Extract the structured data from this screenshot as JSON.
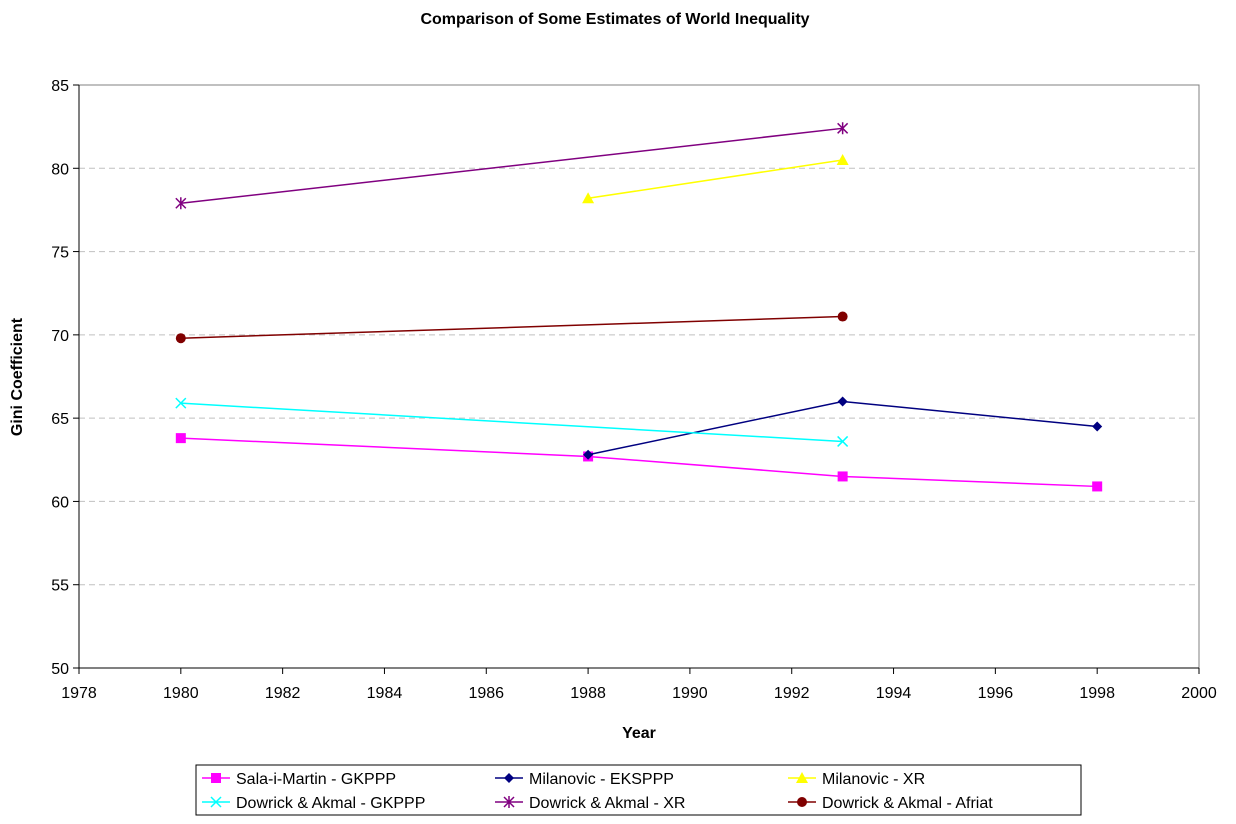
{
  "chart_data": {
    "type": "line",
    "title": "Comparison of Some Estimates of World Inequality",
    "xlabel": "Year",
    "ylabel": "Gini Coefficient",
    "xlim": [
      1978,
      2000
    ],
    "ylim": [
      50,
      85
    ],
    "xticks": [
      1978,
      1980,
      1982,
      1984,
      1986,
      1988,
      1990,
      1992,
      1994,
      1996,
      1998,
      2000
    ],
    "yticks": [
      50,
      55,
      60,
      65,
      70,
      75,
      80,
      85
    ],
    "grid": "horizontal dashed",
    "legend_position": "bottom",
    "series": [
      {
        "name": "Sala-i-Martin - GKPPP",
        "color": "#ff00ff",
        "marker": "square",
        "points": [
          [
            1980,
            63.8
          ],
          [
            1988,
            62.7
          ],
          [
            1993,
            61.5
          ],
          [
            1998,
            60.9
          ]
        ]
      },
      {
        "name": "Milanovic - EKSPPP",
        "color": "#000080",
        "marker": "diamond",
        "points": [
          [
            1988,
            62.8
          ],
          [
            1993,
            66.0
          ],
          [
            1998,
            64.5
          ]
        ]
      },
      {
        "name": "Milanovic - XR",
        "color": "#ffff00",
        "marker": "triangle",
        "points": [
          [
            1988,
            78.2
          ],
          [
            1993,
            80.5
          ]
        ]
      },
      {
        "name": "Dowrick & Akmal - GKPPP",
        "color": "#00ffff",
        "marker": "x",
        "points": [
          [
            1980,
            65.9
          ],
          [
            1993,
            63.6
          ]
        ]
      },
      {
        "name": "Dowrick & Akmal - XR",
        "color": "#800080",
        "marker": "star",
        "points": [
          [
            1980,
            77.9
          ],
          [
            1993,
            82.4
          ]
        ]
      },
      {
        "name": "Dowrick & Akmal - Afriat",
        "color": "#800000",
        "marker": "circle",
        "points": [
          [
            1980,
            69.8
          ],
          [
            1993,
            71.1
          ]
        ]
      }
    ]
  }
}
